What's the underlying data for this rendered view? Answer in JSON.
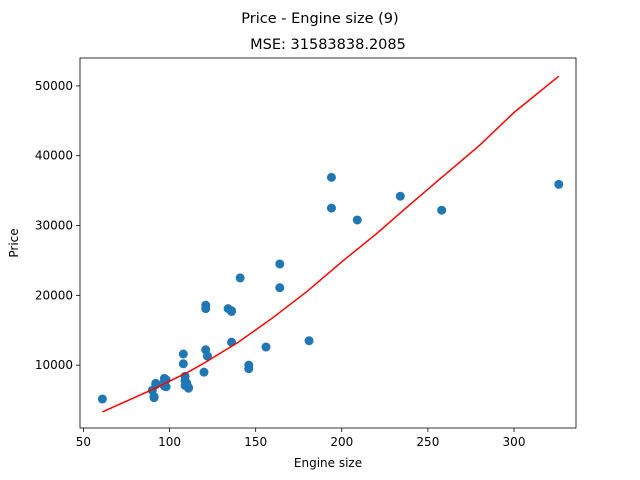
{
  "chart_data": {
    "type": "scatter",
    "title": "Price - Engine size (9)",
    "subtitle": "MSE: 31583838.2085",
    "xlabel": "Engine size",
    "ylabel": "Price",
    "xlim": [
      48,
      336
    ],
    "ylim": [
      1000,
      54000
    ],
    "xticks": [
      50,
      100,
      150,
      200,
      250,
      300
    ],
    "yticks": [
      10000,
      20000,
      30000,
      40000,
      50000
    ],
    "grid": false,
    "colors": {
      "points": "#1f77b4",
      "fit_line": "#ff0000"
    },
    "series": [
      {
        "type": "scatter",
        "points": [
          [
            61,
            5150
          ],
          [
            90,
            6400
          ],
          [
            91,
            5500
          ],
          [
            91,
            5350
          ],
          [
            92,
            7200
          ],
          [
            92,
            7400
          ],
          [
            97,
            7000
          ],
          [
            97,
            7600
          ],
          [
            97,
            8100
          ],
          [
            98,
            6900
          ],
          [
            98,
            7900
          ],
          [
            108,
            11600
          ],
          [
            108,
            10200
          ],
          [
            109,
            8400
          ],
          [
            109,
            7800
          ],
          [
            109,
            7100
          ],
          [
            110,
            7200
          ],
          [
            110,
            7400
          ],
          [
            111,
            6700
          ],
          [
            111,
            6800
          ],
          [
            120,
            9000
          ],
          [
            121,
            18600
          ],
          [
            121,
            18100
          ],
          [
            121,
            12200
          ],
          [
            122,
            11300
          ],
          [
            134,
            18100
          ],
          [
            136,
            17800
          ],
          [
            136,
            17700
          ],
          [
            136,
            13300
          ],
          [
            141,
            22500
          ],
          [
            146,
            10000
          ],
          [
            146,
            9500
          ],
          [
            156,
            12600
          ],
          [
            164,
            24500
          ],
          [
            164,
            21100
          ],
          [
            181,
            13500
          ],
          [
            194,
            36900
          ],
          [
            194,
            32500
          ],
          [
            209,
            30800
          ],
          [
            234,
            34200
          ],
          [
            258,
            32200
          ],
          [
            326,
            35900
          ]
        ]
      },
      {
        "type": "line",
        "points": [
          [
            61,
            3300
          ],
          [
            90,
            6500
          ],
          [
            100,
            7700
          ],
          [
            110,
            8900
          ],
          [
            120,
            10300
          ],
          [
            140,
            13300
          ],
          [
            160,
            16800
          ],
          [
            180,
            20600
          ],
          [
            200,
            24800
          ],
          [
            220,
            28800
          ],
          [
            240,
            33100
          ],
          [
            258,
            36900
          ],
          [
            280,
            41500
          ],
          [
            300,
            46200
          ],
          [
            326,
            51400
          ]
        ]
      }
    ]
  }
}
